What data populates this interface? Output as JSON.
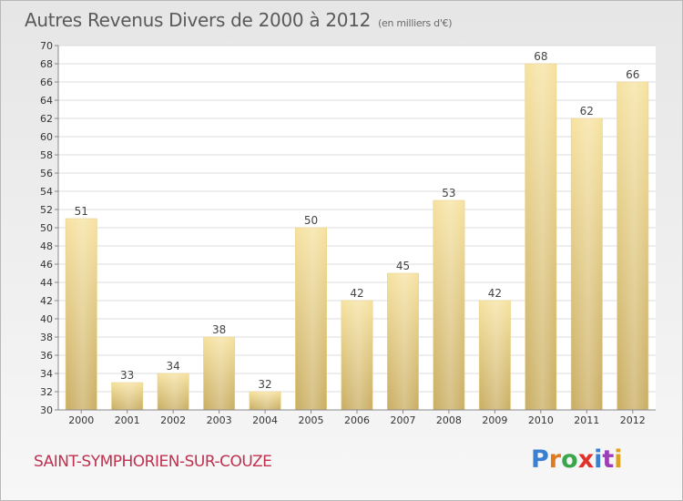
{
  "header": {
    "title": "Autres Revenus Divers de 2000 à 2012",
    "subtitle": "(en milliers d'€)"
  },
  "footer": {
    "commune": "SAINT-SYMPHORIEN-SUR-COUZE",
    "logo": "Proxiti",
    "logo_colors": [
      "#3a7fd0",
      "#e07a20",
      "#3aa54a",
      "#e0322b",
      "#3a7fd0",
      "#9c3fb5",
      "#e0a020"
    ]
  },
  "colors": {
    "bar_top": "#f6e2a0",
    "bar_bottom": "#c9ad62",
    "grid": "#dcdcdc",
    "axis_text": "#333333",
    "label_text": "#444444"
  },
  "chart_data": {
    "type": "bar",
    "categories": [
      "2000",
      "2001",
      "2002",
      "2003",
      "2004",
      "2005",
      "2006",
      "2007",
      "2008",
      "2009",
      "2010",
      "2011",
      "2012"
    ],
    "values": [
      51,
      33,
      34,
      38,
      32,
      50,
      42,
      45,
      53,
      42,
      68,
      62,
      66
    ],
    "ylim": [
      30,
      70
    ],
    "ytick_step": 2,
    "grid": true,
    "data_labels": true
  }
}
